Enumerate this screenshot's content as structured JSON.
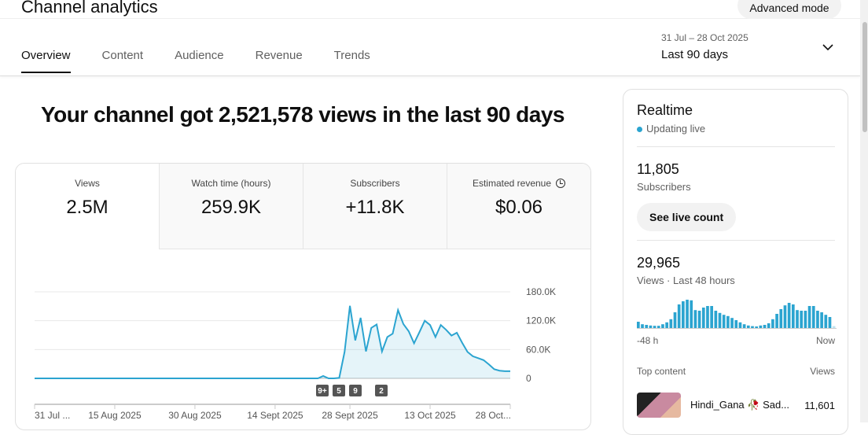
{
  "header": {
    "title": "Channel analytics",
    "advanced_mode": "Advanced mode"
  },
  "tabs": [
    {
      "label": "Overview",
      "active": true
    },
    {
      "label": "Content"
    },
    {
      "label": "Audience"
    },
    {
      "label": "Revenue"
    },
    {
      "label": "Trends"
    }
  ],
  "date_range": {
    "dates": "31 Jul – 28 Oct 2025",
    "label": "Last 90 days"
  },
  "headline": "Your channel got 2,521,578 views in the last 90 days",
  "metrics": [
    {
      "label": "Views",
      "value": "2.5M"
    },
    {
      "label": "Watch time (hours)",
      "value": "259.9K"
    },
    {
      "label": "Subscribers",
      "value": "+11.8K"
    },
    {
      "label": "Estimated revenue",
      "value": "$0.06"
    }
  ],
  "chart_data": {
    "type": "area",
    "series": [
      {
        "values": [
          0,
          0,
          0,
          0,
          0,
          0,
          0,
          0,
          0,
          0,
          0,
          0,
          0,
          0,
          0,
          0,
          0,
          0,
          0,
          0,
          0,
          0,
          0,
          0,
          0,
          0,
          0,
          0,
          0,
          0,
          0,
          0,
          0,
          0,
          0,
          0,
          0,
          0,
          0,
          0,
          0,
          0,
          0,
          0,
          0,
          0,
          0,
          0,
          0,
          0,
          0,
          0,
          0,
          0,
          5000,
          0,
          0,
          1000,
          55000,
          151000,
          79000,
          126000,
          56000,
          105000,
          112000,
          56000,
          86000,
          93000,
          142000,
          113000,
          98000,
          73000,
          96000,
          120000,
          111000,
          86000,
          111000,
          101000,
          89000,
          95000,
          74000,
          55000,
          46000,
          42000,
          38000,
          29000,
          19000,
          16000,
          15000,
          15000
        ]
      }
    ],
    "x_range": [
      "31 Jul 2025",
      "28 Oct 2025"
    ],
    "x_tick_labels": [
      "31 Jul ...",
      "15 Aug 2025",
      "30 Aug 2025",
      "14 Sept 2025",
      "28 Sept 2025",
      "13 Oct 2025",
      "28 Oct..."
    ],
    "y_tick_labels": [
      "0",
      "60.0K",
      "120.0K",
      "180.0K"
    ],
    "ylim": [
      0,
      180000
    ],
    "grid": true,
    "color": "#2ba4d0",
    "markers": [
      {
        "label": "9+",
        "date": "25 Sept 2025"
      },
      {
        "label": "5",
        "date": "26 Sept 2025"
      },
      {
        "label": "9",
        "date": "28 Sept 2025"
      },
      {
        "label": "2",
        "date": "3 Oct 2025"
      }
    ]
  },
  "realtime": {
    "title": "Realtime",
    "status": "Updating live",
    "subscribers": "11,805",
    "subscribers_label": "Subscribers",
    "see_live": "See live count",
    "views": "29,965",
    "views_label": "Views · Last 48 hours",
    "axis_start": "-48 h",
    "axis_end": "Now",
    "bars": [
      20,
      12,
      10,
      8,
      7,
      7,
      12,
      18,
      28,
      50,
      75,
      85,
      90,
      88,
      57,
      55,
      65,
      70,
      70,
      55,
      48,
      42,
      38,
      32,
      25,
      18,
      12,
      8,
      6,
      5,
      8,
      10,
      15,
      28,
      45,
      60,
      72,
      80,
      75,
      57,
      55,
      55,
      70,
      70,
      55,
      50,
      42,
      35,
      6
    ],
    "top_content_label": "Top content",
    "views_col": "Views",
    "top_content": [
      {
        "title": "Hindi_Gana 🥀 Sad...",
        "views": "11,601"
      }
    ]
  }
}
